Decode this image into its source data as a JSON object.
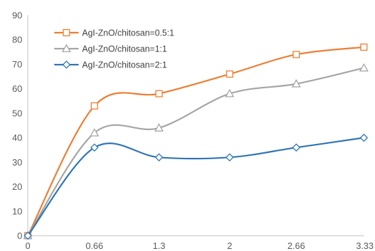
{
  "chart_data": {
    "type": "line",
    "title": "",
    "xlabel": "",
    "ylabel": "",
    "x": [
      0,
      0.66,
      1.3,
      2,
      2.66,
      3.33
    ],
    "x_tick_labels": [
      "0",
      "0.66",
      "1.3",
      "2",
      "2.66",
      "3.33"
    ],
    "y_ticks": [
      0,
      10,
      20,
      30,
      40,
      50,
      60,
      70,
      80,
      90
    ],
    "y_tick_labels": [
      "0",
      "10",
      "20",
      "30",
      "40",
      "50",
      "60",
      "70",
      "80",
      "90"
    ],
    "ylim": [
      0,
      90
    ],
    "xlim": [
      0,
      3.33
    ],
    "grid": false,
    "legend_position": "top-left",
    "smooth": true,
    "series": [
      {
        "name": "AgI-ZnO/chitosan=0.5:1",
        "color": "#ED7D31",
        "marker": "square",
        "values": [
          0,
          53,
          58,
          66,
          74,
          77
        ]
      },
      {
        "name": "AgI-ZnO/chitosan=1:1",
        "color": "#A5A5A5",
        "marker": "triangle",
        "values": [
          0,
          42,
          44,
          58,
          62,
          68.5
        ]
      },
      {
        "name": "AgI-ZnO/chitosan=2:1",
        "color": "#2E75B6",
        "marker": "diamond",
        "values": [
          0,
          36,
          32,
          32,
          36,
          40
        ]
      }
    ]
  }
}
